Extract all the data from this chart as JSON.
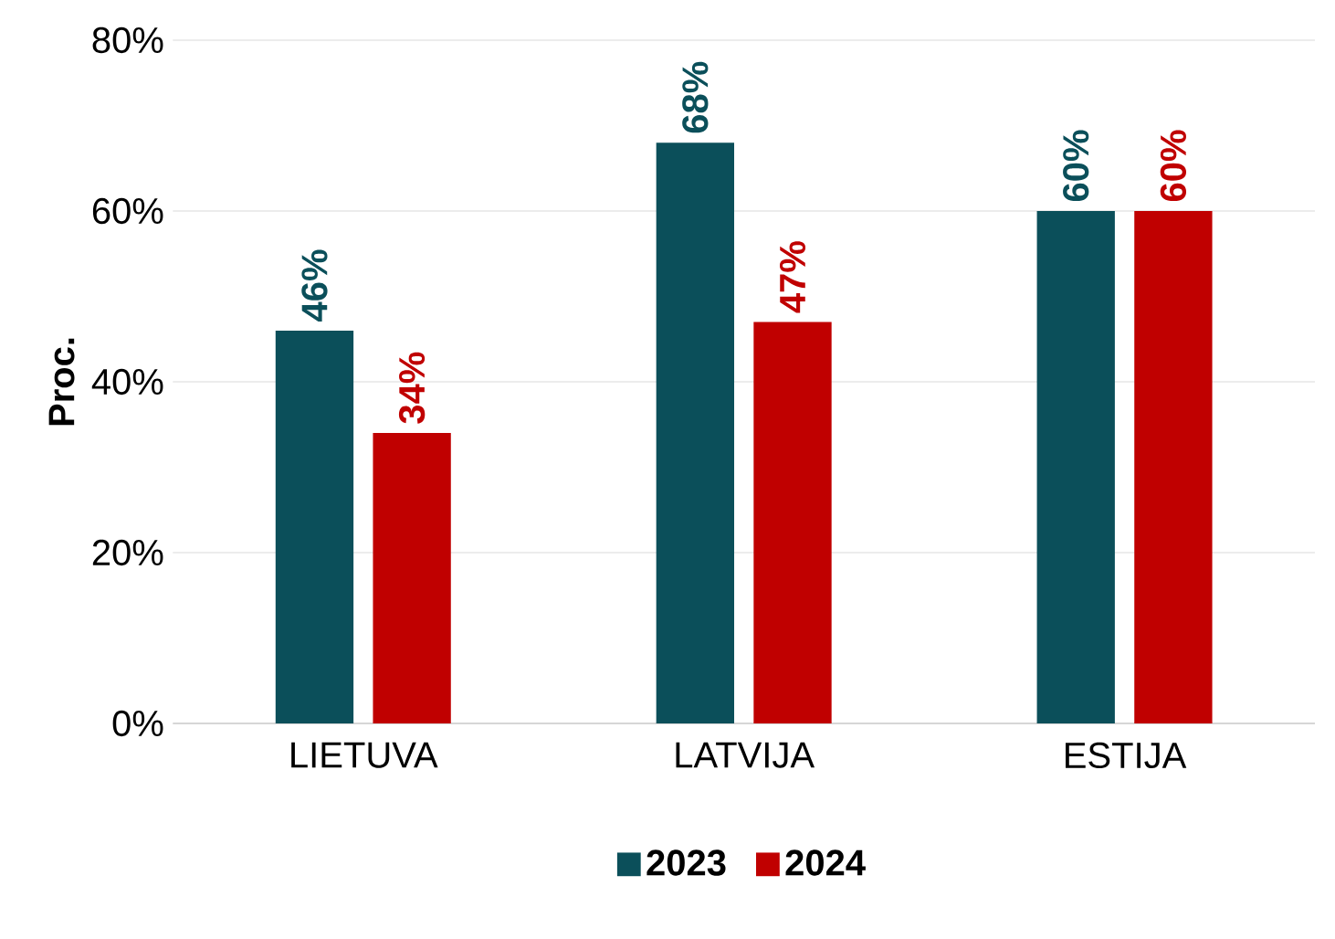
{
  "chart_data": {
    "type": "bar",
    "ylabel": "Proc.",
    "categories": [
      "LIETUVA",
      "LATVIJA",
      "ESTIJA"
    ],
    "series": [
      {
        "name": "2023",
        "color": "#0b4f5a",
        "values": [
          46,
          68,
          60
        ],
        "value_labels": [
          "46%",
          "68%",
          "60%"
        ]
      },
      {
        "name": "2024",
        "color": "#c00000",
        "values": [
          34,
          47,
          60
        ],
        "value_labels": [
          "34%",
          "47%",
          "60%"
        ]
      }
    ],
    "ylim": [
      0,
      80
    ],
    "yticks": [
      {
        "value": 0,
        "label": "0%"
      },
      {
        "value": 20,
        "label": "20%"
      },
      {
        "value": 40,
        "label": "40%"
      },
      {
        "value": 60,
        "label": "60%"
      },
      {
        "value": 80,
        "label": "80%"
      }
    ],
    "grid": "y",
    "legend": "bottom"
  }
}
